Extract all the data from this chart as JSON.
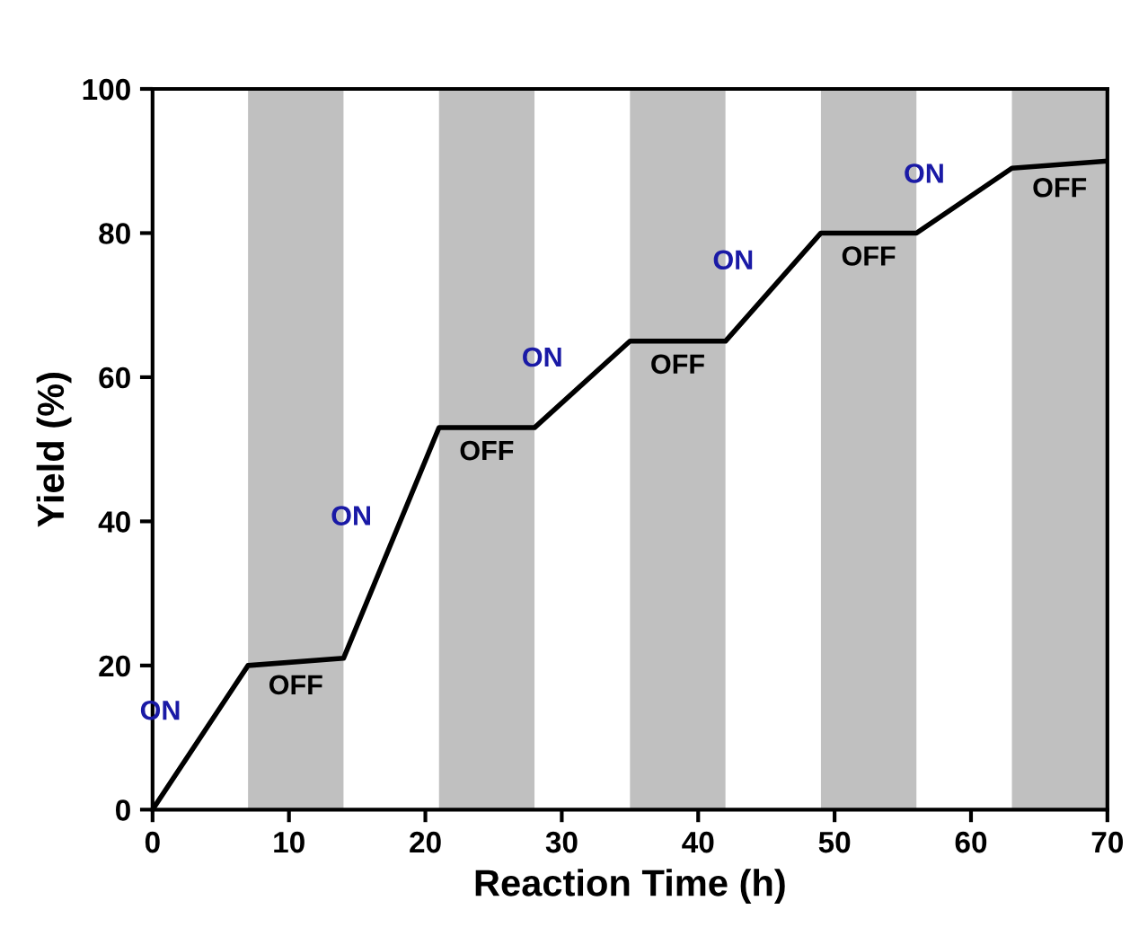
{
  "chart_data": {
    "type": "line",
    "xlabel": "Reaction Time (h)",
    "ylabel": "Yield (%)",
    "x": [
      0,
      7,
      14,
      21,
      28,
      35,
      42,
      49,
      56,
      63,
      70
    ],
    "series": [
      {
        "color": "#000000",
        "values": [
          0,
          20,
          21,
          53,
          53,
          65,
          65,
          80,
          80,
          89,
          90
        ]
      }
    ],
    "xlim": [
      0,
      70
    ],
    "xticks": [
      0,
      10,
      20,
      30,
      40,
      50,
      60,
      70
    ],
    "ylim": [
      0,
      100
    ],
    "yticks": [
      0,
      20,
      40,
      60,
      80,
      100
    ],
    "grid": false,
    "legend": false,
    "marker": "none",
    "line_style": "solid",
    "bands": [
      {
        "axis": "x",
        "from": 7,
        "to": 14,
        "label": "OFF",
        "color": "#c0c0c0"
      },
      {
        "axis": "x",
        "from": 21,
        "to": 28,
        "label": "OFF",
        "color": "#c0c0c0"
      },
      {
        "axis": "x",
        "from": 35,
        "to": 42,
        "label": "OFF",
        "color": "#c0c0c0"
      },
      {
        "axis": "x",
        "from": 49,
        "to": 56,
        "label": "OFF",
        "color": "#c0c0c0"
      },
      {
        "axis": "x",
        "from": 63,
        "to": 70,
        "label": "OFF",
        "color": "#c0c0c0"
      }
    ],
    "annotations": [
      "ON",
      "ON",
      "ON",
      "ON",
      "ON"
    ]
  }
}
